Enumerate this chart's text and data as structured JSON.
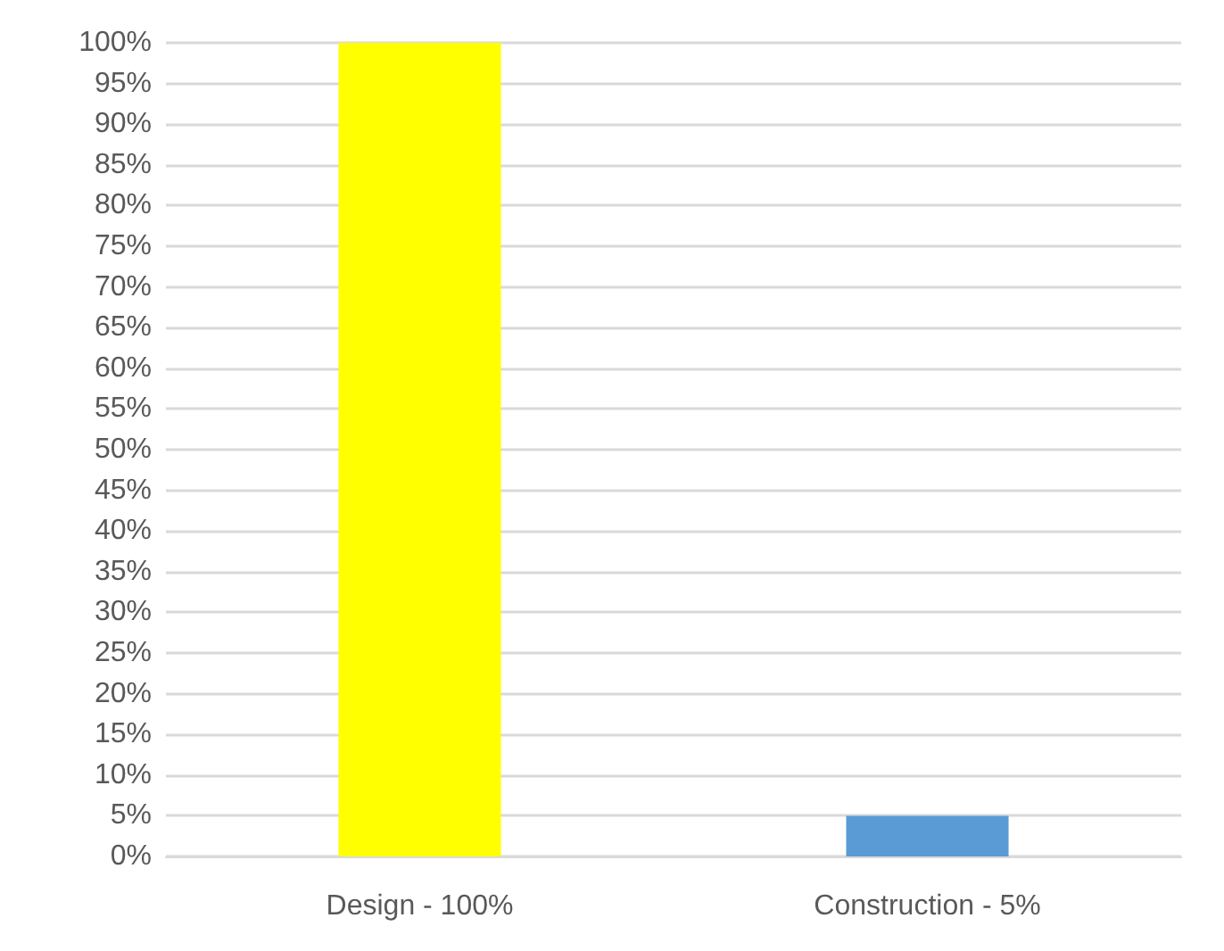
{
  "chart_data": {
    "type": "bar",
    "categories": [
      "Design - 100%",
      "Construction - 5%"
    ],
    "values": [
      100,
      5
    ],
    "colors": [
      "#ffff00",
      "#5b9bd5"
    ],
    "ylim": [
      0,
      100
    ],
    "yticks": [
      {
        "value": 0,
        "label": "0%"
      },
      {
        "value": 5,
        "label": "5%"
      },
      {
        "value": 10,
        "label": "10%"
      },
      {
        "value": 15,
        "label": "15%"
      },
      {
        "value": 20,
        "label": "20%"
      },
      {
        "value": 25,
        "label": "25%"
      },
      {
        "value": 30,
        "label": "30%"
      },
      {
        "value": 35,
        "label": "35%"
      },
      {
        "value": 40,
        "label": "40%"
      },
      {
        "value": 45,
        "label": "45%"
      },
      {
        "value": 50,
        "label": "50%"
      },
      {
        "value": 55,
        "label": "55%"
      },
      {
        "value": 60,
        "label": "60%"
      },
      {
        "value": 65,
        "label": "65%"
      },
      {
        "value": 70,
        "label": "70%"
      },
      {
        "value": 75,
        "label": "75%"
      },
      {
        "value": 80,
        "label": "80%"
      },
      {
        "value": 85,
        "label": "85%"
      },
      {
        "value": 90,
        "label": "90%"
      },
      {
        "value": 95,
        "label": "95%"
      },
      {
        "value": 100,
        "label": "100%"
      }
    ],
    "grid": "y"
  }
}
